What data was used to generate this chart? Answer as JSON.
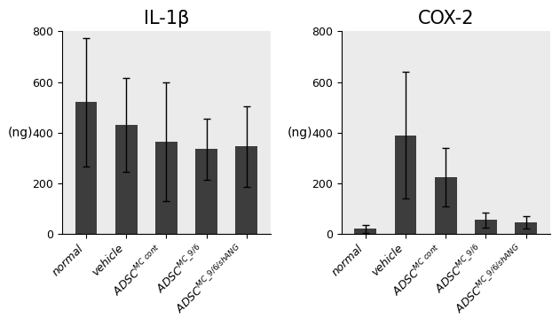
{
  "panels": [
    {
      "title": "IL-1β",
      "ylabel": "(ng)",
      "values": [
        520,
        430,
        365,
        335,
        345
      ],
      "errors": [
        255,
        185,
        235,
        120,
        160
      ],
      "ylim": [
        0,
        800
      ],
      "yticks": [
        0,
        200,
        400,
        600,
        800
      ]
    },
    {
      "title": "COX-2",
      "ylabel": "(ng)",
      "values": [
        20,
        390,
        225,
        55,
        45
      ],
      "errors": [
        15,
        250,
        115,
        30,
        25
      ],
      "ylim": [
        0,
        800
      ],
      "yticks": [
        0,
        200,
        400,
        600,
        800
      ]
    }
  ],
  "bar_color": "#3d3d3d",
  "bar_width": 0.55,
  "plot_bg_color": "#ebebeb",
  "fig_bg_color": "#ffffff",
  "title_color": "#000000",
  "title_fontsize": 15,
  "axis_label_fontsize": 10,
  "tick_fontsize": 9,
  "xtick_rotation": 45,
  "capsize": 3,
  "error_color": "#000000",
  "error_linewidth": 1.0
}
